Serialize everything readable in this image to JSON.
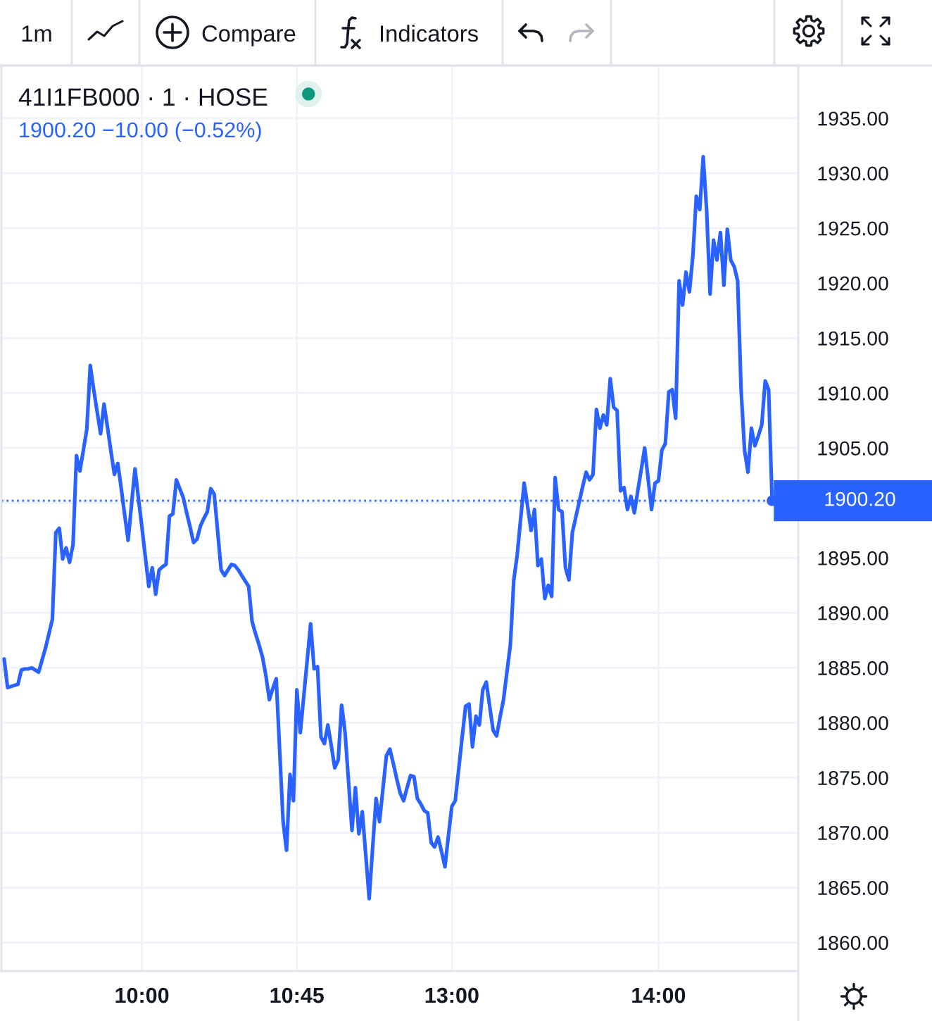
{
  "chart_data": {
    "type": "line",
    "title": "41I1FB000 · 1 · HOSE",
    "subtitle": "1900.20 −10.00 (−0.52%)",
    "annotations": [
      "1m",
      "Compare",
      "Indicators"
    ],
    "categories": [
      null,
      null,
      null,
      null,
      null,
      null,
      null,
      null,
      null,
      null,
      null,
      null,
      null,
      null,
      null,
      null,
      null,
      null,
      null,
      null,
      null,
      null,
      null,
      null,
      null,
      null,
      null,
      null,
      null,
      null,
      null,
      null,
      null,
      null,
      null,
      null,
      null,
      null,
      null,
      null,
      "10:00",
      null,
      null,
      null,
      null,
      null,
      null,
      null,
      null,
      null,
      null,
      null,
      null,
      null,
      null,
      null,
      null,
      null,
      null,
      null,
      null,
      null,
      null,
      null,
      null,
      null,
      null,
      null,
      null,
      null,
      null,
      null,
      null,
      null,
      null,
      null,
      null,
      null,
      null,
      null,
      null,
      null,
      null,
      null,
      null,
      "10:45",
      null,
      null,
      null,
      null,
      null,
      null,
      null,
      null,
      null,
      null,
      null,
      null,
      null,
      null,
      null,
      null,
      null,
      null,
      null,
      null,
      null,
      null,
      null,
      null,
      null,
      null,
      null,
      null,
      null,
      null,
      null,
      null,
      null,
      null,
      null,
      null,
      null,
      null,
      null,
      null,
      null,
      null,
      null,
      null,
      "13:00",
      null,
      null,
      null,
      null,
      null,
      null,
      null,
      null,
      null,
      null,
      null,
      null,
      null,
      null,
      null,
      null,
      null,
      null,
      null,
      null,
      null,
      null,
      null,
      null,
      null,
      null,
      null,
      null,
      null,
      null,
      null,
      null,
      null,
      null,
      null,
      null,
      null,
      null,
      null,
      null,
      null,
      null,
      null,
      null,
      null,
      null,
      null,
      null,
      null,
      null,
      null,
      null,
      null,
      null,
      null,
      null,
      null,
      null,
      null,
      "14:00",
      null,
      null,
      null,
      null,
      null,
      null,
      null,
      null,
      null,
      null,
      null,
      null,
      null,
      null,
      null,
      null,
      null,
      null,
      null,
      null,
      null,
      null,
      null,
      null,
      null,
      null,
      null,
      null,
      null,
      null,
      null,
      null,
      null
    ],
    "series": [
      {
        "color": "#2962ff",
        "values": [
          1885.8,
          1883.2,
          1883.3,
          1883.4,
          1883.5,
          1884.8,
          1884.9,
          1884.9,
          1885.0,
          1884.8,
          1884.6,
          1885.7,
          1886.8,
          1888.1,
          1889.4,
          1897.3,
          1897.7,
          1894.9,
          1895.9,
          1894.6,
          1896.2,
          1904.3,
          1902.9,
          1904.8,
          1906.7,
          1912.5,
          1910.3,
          1908.3,
          1906.3,
          1909.0,
          1906.9,
          1904.7,
          1902.6,
          1903.6,
          1901.3,
          1898.9,
          1896.6,
          1899.9,
          1903.1,
          1900.4,
          1897.8,
          1895.1,
          1892.4,
          1894.1,
          1891.7,
          1893.9,
          1894.2,
          1894.4,
          1898.8,
          1899.0,
          1902.1,
          1901.3,
          1900.5,
          1899.1,
          1897.8,
          1896.4,
          1896.7,
          1897.9,
          1898.6,
          1899.2,
          1901.3,
          1900.8,
          1897.4,
          1893.9,
          1893.4,
          1893.9,
          1894.4,
          1894.3,
          1893.9,
          1893.4,
          1892.9,
          1892.4,
          1889.2,
          1888.1,
          1887.1,
          1886.0,
          1884.3,
          1882.1,
          1883.1,
          1884.0,
          1877.5,
          1871.0,
          1868.4,
          1875.3,
          1872.9,
          1883.0,
          1879.1,
          1882.4,
          1885.7,
          1889.0,
          1884.9,
          1885.1,
          1878.7,
          1878.1,
          1879.8,
          1877.9,
          1875.9,
          1876.6,
          1881.6,
          1879.1,
          1874.7,
          1870.2,
          1874.1,
          1869.9,
          1871.9,
          1868.0,
          1864.0,
          1868.6,
          1873.1,
          1871.0,
          1874.0,
          1877.0,
          1877.6,
          1876.3,
          1874.9,
          1873.6,
          1872.9,
          1874.1,
          1875.2,
          1875.1,
          1873.1,
          1872.6,
          1872.0,
          1871.8,
          1869.1,
          1868.7,
          1869.6,
          1868.3,
          1866.9,
          1869.7,
          1872.4,
          1872.9,
          1875.8,
          1878.7,
          1881.5,
          1881.7,
          1877.8,
          1880.6,
          1879.8,
          1883.0,
          1883.7,
          1881.5,
          1879.3,
          1878.8,
          1880.5,
          1882.1,
          1884.6,
          1887.1,
          1893.0,
          1895.3,
          1898.6,
          1901.8,
          1899.7,
          1897.5,
          1899.4,
          1894.3,
          1894.9,
          1891.3,
          1892.5,
          1891.5,
          1902.3,
          1899.4,
          1899.2,
          1894.1,
          1893.0,
          1897.3,
          1898.7,
          1900.1,
          1901.5,
          1902.8,
          1902.1,
          1902.6,
          1908.5,
          1906.8,
          1908.0,
          1907.1,
          1911.3,
          1908.7,
          1908.4,
          1901.1,
          1901.4,
          1899.4,
          1900.6,
          1899.1,
          1901.1,
          1903.0,
          1905.0,
          1902.2,
          1899.4,
          1901.8,
          1902.0,
          1904.8,
          1905.4,
          1910.1,
          1910.3,
          1907.7,
          1920.2,
          1918.0,
          1921.0,
          1919.2,
          1922.5,
          1927.9,
          1926.7,
          1931.5,
          1926.6,
          1919.0,
          1923.9,
          1922.1,
          1924.6,
          1919.8,
          1924.9,
          1922.1,
          1921.5,
          1920.2,
          1910.3,
          1904.8,
          1902.8,
          1906.8,
          1905.2,
          1906.1,
          1907.1,
          1911.1,
          1910.3,
          1900.2
        ]
      },
      {
        "type": "scatter",
        "color": "#2962ff",
        "marker": "circle",
        "values": [
          null,
          null,
          null,
          null,
          null,
          null,
          null,
          null,
          null,
          null,
          null,
          null,
          null,
          null,
          null,
          null,
          null,
          null,
          null,
          null,
          null,
          null,
          null,
          null,
          null,
          null,
          null,
          null,
          null,
          null,
          null,
          null,
          null,
          null,
          null,
          null,
          null,
          null,
          null,
          null,
          null,
          null,
          null,
          null,
          null,
          null,
          null,
          null,
          null,
          null,
          null,
          null,
          null,
          null,
          null,
          null,
          null,
          null,
          null,
          null,
          null,
          null,
          null,
          null,
          null,
          null,
          null,
          null,
          null,
          null,
          null,
          null,
          null,
          null,
          null,
          null,
          null,
          null,
          null,
          null,
          null,
          null,
          null,
          null,
          null,
          null,
          null,
          null,
          null,
          null,
          null,
          null,
          null,
          null,
          null,
          null,
          null,
          null,
          null,
          null,
          null,
          null,
          null,
          null,
          null,
          null,
          null,
          null,
          null,
          null,
          null,
          null,
          null,
          null,
          null,
          null,
          null,
          null,
          null,
          null,
          null,
          null,
          null,
          null,
          null,
          null,
          null,
          null,
          null,
          null,
          null,
          null,
          null,
          null,
          null,
          null,
          null,
          null,
          null,
          null,
          null,
          null,
          null,
          null,
          null,
          null,
          null,
          null,
          null,
          null,
          null,
          null,
          null,
          null,
          null,
          null,
          null,
          null,
          null,
          null,
          null,
          null,
          null,
          null,
          null,
          null,
          null,
          null,
          null,
          null,
          null,
          null,
          null,
          null,
          null,
          null,
          null,
          null,
          null,
          null,
          null,
          null,
          null,
          null,
          null,
          null,
          null,
          null,
          null,
          null,
          null,
          null,
          null,
          null,
          null,
          null,
          null,
          null,
          null,
          null,
          null,
          null,
          null,
          null,
          null,
          null,
          null,
          null,
          null,
          null,
          null,
          null,
          null,
          null,
          null,
          null,
          null,
          null,
          null,
          null,
          null,
          null,
          null,
          1900.2
        ]
      }
    ],
    "ylim": [
      1857.4,
      1939.8
    ],
    "yticks": [
      {
        "value": 1860,
        "label": "1860.00"
      },
      {
        "value": 1865,
        "label": "1865.00"
      },
      {
        "value": 1870,
        "label": "1870.00"
      },
      {
        "value": 1875,
        "label": "1875.00"
      },
      {
        "value": 1880,
        "label": "1880.00"
      },
      {
        "value": 1885,
        "label": "1885.00"
      },
      {
        "value": 1890,
        "label": "1890.00"
      },
      {
        "value": 1895,
        "label": "1895.00"
      },
      {
        "value": 1900,
        "label": null
      },
      {
        "value": 1905,
        "label": "1905.00"
      },
      {
        "value": 1910,
        "label": "1910.00"
      },
      {
        "value": 1915,
        "label": "1915.00"
      },
      {
        "value": 1920,
        "label": "1920.00"
      },
      {
        "value": 1925,
        "label": "1925.00"
      },
      {
        "value": 1930,
        "label": "1930.00"
      },
      {
        "value": 1935,
        "label": "1935.00"
      }
    ],
    "ref_lines": [
      {
        "axis": "y",
        "value": 1900.2,
        "label": "1900.20",
        "color": "#2962ff",
        "line_style": "dotted"
      }
    ],
    "grid": true
  }
}
